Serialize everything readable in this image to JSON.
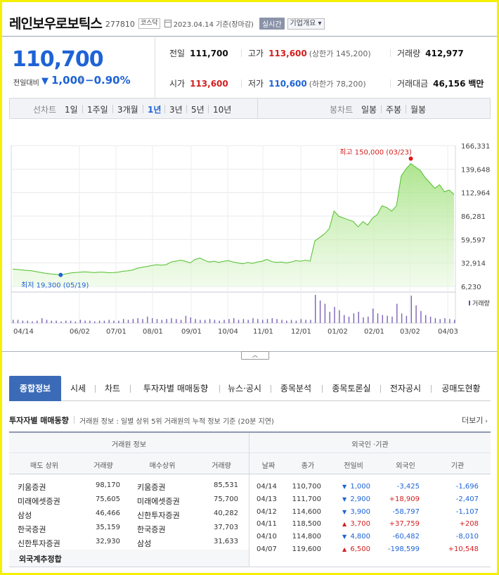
{
  "header": {
    "name": "레인보우로보틱스",
    "code": "277810",
    "market": "코스닥",
    "base_date": "2023.04.14 기준(장마감)",
    "realtime": "실시간",
    "overview": "기업개요 ▾"
  },
  "price": {
    "current": "110,700",
    "prev_diff_label": "전일대비",
    "diff_arrow": "▼",
    "diff": "1,000",
    "pct_sep": "|",
    "pct": "−0.90%"
  },
  "quotes": {
    "prev_close_label": "전일",
    "prev_close": "111,700",
    "high_label": "고가",
    "high": "113,600",
    "upper_limit": "(상한가 145,200)",
    "volume_label": "거래량",
    "volume": "412,977",
    "open_label": "시가",
    "open": "113,600",
    "low_label": "저가",
    "low": "110,600",
    "lower_limit": "(하한가 78,200)",
    "amount_label": "거래대금",
    "amount": "46,156",
    "amount_unit": "백만"
  },
  "period_bar": {
    "line_label": "선차트",
    "line_periods": [
      "1일",
      "1주일",
      "3개월",
      "1년",
      "3년",
      "5년",
      "10년"
    ],
    "line_active": "1년",
    "candle_label": "봉차트",
    "candle_periods": [
      "일봉",
      "주봉",
      "월봉"
    ]
  },
  "chart_data": {
    "type": "area",
    "y_ticks": [
      "166,331",
      "139,648",
      "112,964",
      "86,281",
      "59,597",
      "32,914",
      "6,230"
    ],
    "ylim": [
      6230,
      166331
    ],
    "x_ticks": [
      "04/14",
      "06/02",
      "07/01",
      "08/01",
      "09/01",
      "10/04",
      "11/01",
      "12/01",
      "01/02",
      "02/01",
      "03/02",
      "04/03"
    ],
    "high_label": "최고 150,000 (03/23)",
    "low_label": "최저 19,300 (05/19)",
    "volume_label": "거래량",
    "price_values": [
      26000,
      25500,
      25000,
      24500,
      24000,
      23000,
      22000,
      21000,
      20500,
      20000,
      19300,
      20500,
      21500,
      22000,
      22500,
      22800,
      22500,
      22000,
      22500,
      22500,
      21800,
      22000,
      22500,
      23500,
      24000,
      25000,
      27000,
      28000,
      29000,
      30000,
      31000,
      30500,
      31000,
      34000,
      35000,
      36000,
      35000,
      33000,
      37000,
      38500,
      36000,
      34000,
      35000,
      33500,
      35000,
      35500,
      34000,
      33000,
      32000,
      33500,
      32500,
      34000,
      35000,
      37000,
      34500,
      33500,
      34000,
      33000,
      34000,
      35500,
      35000,
      36000,
      35000,
      58000,
      62000,
      66000,
      72000,
      92000,
      86000,
      84000,
      82000,
      80000,
      74000,
      80000,
      76000,
      84000,
      88000,
      98000,
      96000,
      92000,
      98000,
      132000,
      140000,
      146000,
      142000,
      138000,
      130000,
      124000,
      118000,
      122000,
      114000,
      116000,
      110700
    ],
    "volume_values": [
      4,
      4,
      3,
      3,
      2,
      3,
      6,
      4,
      3,
      3,
      2,
      3,
      3,
      2,
      4,
      3,
      3,
      2,
      3,
      3,
      4,
      3,
      3,
      5,
      4,
      5,
      6,
      5,
      8,
      6,
      5,
      4,
      5,
      6,
      5,
      4,
      9,
      7,
      5,
      4,
      4,
      5,
      4,
      3,
      4,
      5,
      6,
      4,
      5,
      4,
      6,
      5,
      4,
      5,
      6,
      5,
      4,
      3,
      4,
      3,
      5,
      4,
      4,
      35,
      28,
      24,
      14,
      20,
      16,
      10,
      8,
      12,
      14,
      7,
      8,
      18,
      12,
      10,
      9,
      8,
      24,
      12,
      9,
      34,
      22,
      15,
      10,
      8,
      6,
      5,
      6,
      5,
      4
    ]
  },
  "collapse_button": "︿",
  "tabs": [
    "종합정보",
    "시세",
    "차트",
    "투자자별 매매동향",
    "뉴스·공시",
    "종목분석",
    "종목토론실",
    "전자공시",
    "공매도현황"
  ],
  "trading": {
    "title": "투자자별 매매동향",
    "desc": "거래원 정보 : 일별 상위 5위 거래원의 누적 정보 기준 (20분 지연)",
    "more": "더보기",
    "left_header": "거래원 정보",
    "right_header": "외국인 ·기관",
    "left_cols": [
      "매도 상위",
      "거래량",
      "매수상위",
      "거래량"
    ],
    "right_cols": [
      "날짜",
      "종가",
      "전일비",
      "외국인",
      "기관"
    ],
    "brokers": [
      {
        "sell": "키움증권",
        "sell_vol": "98,170",
        "buy": "키움증권",
        "buy_vol": "85,531"
      },
      {
        "sell": "미래에셋증권",
        "sell_vol": "75,605",
        "buy": "미래에셋증권",
        "buy_vol": "75,700"
      },
      {
        "sell": "삼성",
        "sell_vol": "46,466",
        "buy": "신한투자증권",
        "buy_vol": "40,282"
      },
      {
        "sell": "한국증권",
        "sell_vol": "35,159",
        "buy": "한국증권",
        "buy_vol": "37,703"
      },
      {
        "sell": "신한투자증권",
        "sell_vol": "32,930",
        "buy": "삼성",
        "buy_vol": "31,633"
      }
    ],
    "foreign_total_label": "외국계추정합",
    "investors": [
      {
        "date": "04/14",
        "close": "110,700",
        "arrow": "▼",
        "diff": "1,000",
        "dir": "down",
        "foreign": "-3,425",
        "inst": "-1,696"
      },
      {
        "date": "04/13",
        "close": "111,700",
        "arrow": "▼",
        "diff": "2,900",
        "dir": "down",
        "foreign": "+18,909",
        "inst": "-2,407"
      },
      {
        "date": "04/12",
        "close": "114,600",
        "arrow": "▼",
        "diff": "3,900",
        "dir": "down",
        "foreign": "-58,797",
        "inst": "-1,107"
      },
      {
        "date": "04/11",
        "close": "118,500",
        "arrow": "▲",
        "diff": "3,700",
        "dir": "up",
        "foreign": "+37,759",
        "inst": "+208"
      },
      {
        "date": "04/10",
        "close": "114,800",
        "arrow": "▼",
        "diff": "4,800",
        "dir": "down",
        "foreign": "-60,482",
        "inst": "-8,010"
      },
      {
        "date": "04/07",
        "close": "119,600",
        "arrow": "▲",
        "diff": "6,500",
        "dir": "up",
        "foreign": "-198,599",
        "inst": "+10,548"
      }
    ]
  }
}
